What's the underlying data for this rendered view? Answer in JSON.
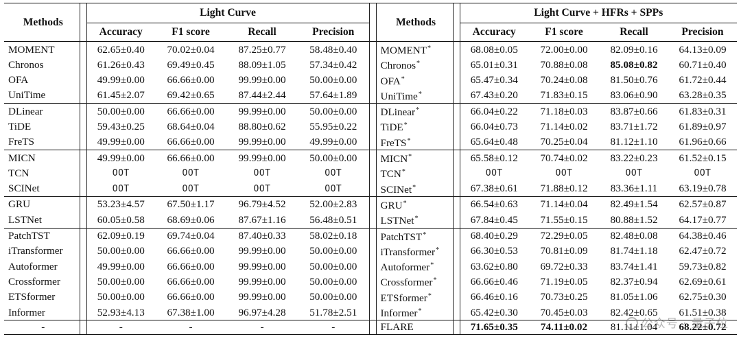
{
  "header": {
    "methods_label": "Methods",
    "left_group": "Light Curve",
    "right_group": "Light Curve + HFRs + SPPs",
    "metrics": [
      "Accuracy",
      "F1 score",
      "Recall",
      "Precision"
    ]
  },
  "groups": [
    {
      "rows": [
        {
          "l": [
            "MOMENT",
            "62.65±0.40",
            "70.02±0.04",
            "87.25±0.77",
            "58.48±0.40"
          ],
          "r": [
            "MOMENT",
            "68.08±0.05",
            "72.00±0.00",
            "82.09±0.16",
            "64.13±0.09"
          ]
        },
        {
          "l": [
            "Chronos",
            "61.26±0.43",
            "69.49±0.45",
            "88.09±1.05",
            "57.34±0.42"
          ],
          "r": [
            "Chronos",
            "65.01±0.31",
            "70.88±0.08",
            "85.08±0.82",
            "60.71±0.40"
          ]
        },
        {
          "l": [
            "OFA",
            "49.99±0.00",
            "66.66±0.00",
            "99.99±0.00",
            "50.00±0.00"
          ],
          "r": [
            "OFA",
            "65.47±0.34",
            "70.24±0.08",
            "81.50±0.76",
            "61.72±0.44"
          ]
        },
        {
          "l": [
            "UniTime",
            "61.45±2.07",
            "69.42±0.65",
            "87.44±2.44",
            "57.64±1.89"
          ],
          "r": [
            "UniTime",
            "67.43±0.20",
            "71.83±0.15",
            "83.06±0.90",
            "63.28±0.35"
          ]
        }
      ]
    },
    {
      "rows": [
        {
          "l": [
            "DLinear",
            "50.00±0.00",
            "66.66±0.00",
            "99.99±0.00",
            "50.00±0.00"
          ],
          "r": [
            "DLinear",
            "66.04±0.22",
            "71.18±0.03",
            "83.87±0.66",
            "61.83±0.31"
          ]
        },
        {
          "l": [
            "TiDE",
            "59.43±0.25",
            "68.64±0.04",
            "88.80±0.62",
            "55.95±0.22"
          ],
          "r": [
            "TiDE",
            "66.04±0.73",
            "71.14±0.02",
            "83.71±1.72",
            "61.89±0.97"
          ]
        },
        {
          "l": [
            "FreTS",
            "49.99±0.00",
            "66.66±0.00",
            "99.99±0.00",
            "49.99±0.00"
          ],
          "r": [
            "FreTS",
            "65.64±0.48",
            "70.25±0.04",
            "81.12±1.10",
            "61.96±0.66"
          ]
        }
      ]
    },
    {
      "rows": [
        {
          "l": [
            "MICN",
            "49.99±0.00",
            "66.66±0.00",
            "99.99±0.00",
            "50.00±0.00"
          ],
          "r": [
            "MICN",
            "65.58±0.12",
            "70.74±0.02",
            "83.22±0.23",
            "61.52±0.15"
          ]
        },
        {
          "l": [
            "TCN",
            "OOT",
            "OOT",
            "OOT",
            "OOT"
          ],
          "r": [
            "TCN",
            "OOT",
            "OOT",
            "OOT",
            "OOT"
          ]
        },
        {
          "l": [
            "SCINet",
            "OOT",
            "OOT",
            "OOT",
            "OOT"
          ],
          "r": [
            "SCINet",
            "67.38±0.61",
            "71.88±0.12",
            "83.36±1.11",
            "63.19±0.78"
          ]
        }
      ]
    },
    {
      "rows": [
        {
          "l": [
            "GRU",
            "53.23±4.57",
            "67.50±1.17",
            "96.79±4.52",
            "52.00±2.83"
          ],
          "r": [
            "GRU",
            "66.54±0.63",
            "71.14±0.04",
            "82.49±1.54",
            "62.57±0.87"
          ]
        },
        {
          "l": [
            "LSTNet",
            "60.05±0.58",
            "68.69±0.06",
            "87.67±1.16",
            "56.48±0.51"
          ],
          "r": [
            "LSTNet",
            "67.84±0.45",
            "71.55±0.15",
            "80.88±1.52",
            "64.17±0.77"
          ]
        }
      ]
    },
    {
      "rows": [
        {
          "l": [
            "PatchTST",
            "62.09±0.19",
            "69.74±0.04",
            "87.40±0.33",
            "58.02±0.18"
          ],
          "r": [
            "PatchTST",
            "68.40±0.29",
            "72.29±0.05",
            "82.48±0.08",
            "64.38±0.46"
          ]
        },
        {
          "l": [
            "iTransformer",
            "50.00±0.00",
            "66.66±0.00",
            "99.99±0.00",
            "50.00±0.00"
          ],
          "r": [
            "iTransformer",
            "66.30±0.53",
            "70.81±0.09",
            "81.74±1.18",
            "62.47±0.72"
          ]
        },
        {
          "l": [
            "Autoformer",
            "49.99±0.00",
            "66.66±0.00",
            "99.99±0.00",
            "50.00±0.00"
          ],
          "r": [
            "Autoformer",
            "63.62±0.80",
            "69.72±0.33",
            "83.74±1.41",
            "59.73±0.82"
          ]
        },
        {
          "l": [
            "Crossformer",
            "50.00±0.00",
            "66.66±0.00",
            "99.99±0.00",
            "50.00±0.00"
          ],
          "r": [
            "Crossformer",
            "66.66±0.46",
            "71.19±0.05",
            "82.37±0.94",
            "62.69±0.61"
          ]
        },
        {
          "l": [
            "ETSformer",
            "50.00±0.00",
            "66.66±0.00",
            "99.99±0.00",
            "50.00±0.00"
          ],
          "r": [
            "ETSformer",
            "66.46±0.16",
            "70.73±0.25",
            "81.05±1.06",
            "62.75±0.30"
          ]
        },
        {
          "l": [
            "Informer",
            "52.93±4.13",
            "67.38±1.00",
            "96.97±4.28",
            "51.78±2.51"
          ],
          "r": [
            "Informer",
            "65.42±0.30",
            "70.45±0.03",
            "82.42±0.65",
            "61.51±0.38"
          ]
        }
      ]
    }
  ],
  "final_row": {
    "l": [
      "-",
      "-",
      "-",
      "-",
      "-"
    ],
    "r": [
      "FLARE",
      "71.65±0.35",
      "74.11±0.02",
      "81.11±1.04",
      "68.22±0.72"
    ]
  },
  "asterisk": "*",
  "watermark": "公众号 · 量子位"
}
